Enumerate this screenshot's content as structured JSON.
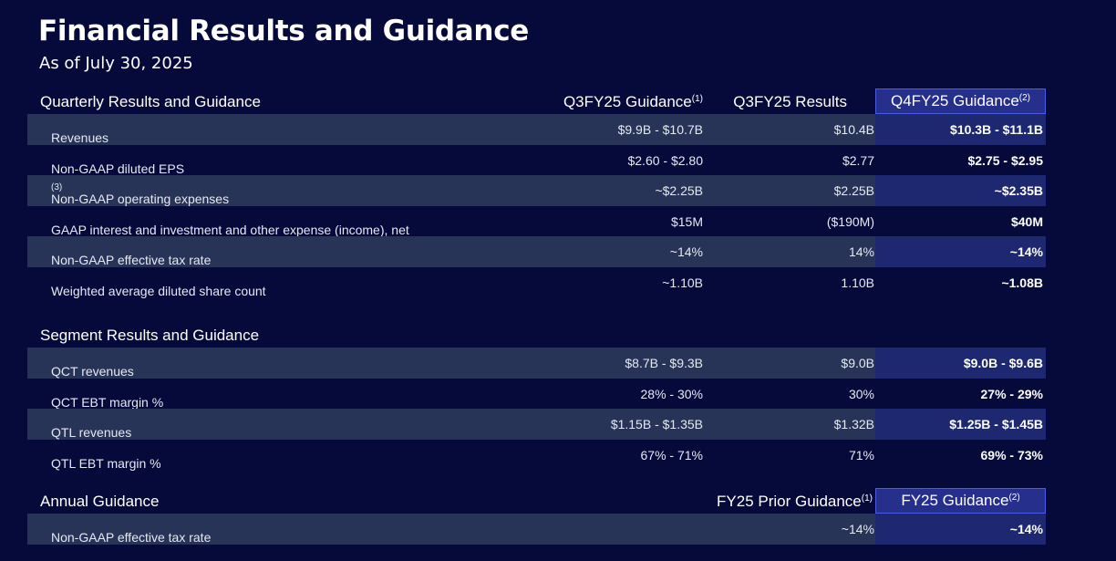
{
  "title": "Financial Results and Guidance",
  "subtitle": "As of July 30, 2025",
  "quarterly": {
    "title": "Quarterly Results and Guidance",
    "col1": "Q3FY25 Guidance",
    "col1_note": "(1)",
    "col2": "Q3FY25 Results",
    "col3": "Q4FY25 Guidance",
    "col3_note": "(2)",
    "rows": [
      {
        "label": "Revenues",
        "note": "",
        "v1": "$9.9B - $10.7B",
        "v2": "$10.4B",
        "v3": "$10.3B - $11.1B"
      },
      {
        "label": "Non-GAAP diluted EPS",
        "note": "",
        "v1": "$2.60 - $2.80",
        "v2": "$2.77",
        "v3": "$2.75 - $2.95"
      },
      {
        "label": "Non-GAAP operating expenses",
        "note": "(3)",
        "v1": "~$2.25B",
        "v2": "$2.25B",
        "v3": "~$2.35B"
      },
      {
        "label": "GAAP interest and investment and other expense (income), net",
        "note": "",
        "v1": "$15M",
        "v2": "($190M)",
        "v3": "$40M"
      },
      {
        "label": "Non-GAAP effective tax rate",
        "note": "",
        "v1": "~14%",
        "v2": "14%",
        "v3": "~14%"
      },
      {
        "label": "Weighted average diluted share count",
        "note": "",
        "v1": "~1.10B",
        "v2": "1.10B",
        "v3": "~1.08B"
      }
    ]
  },
  "segment": {
    "title": "Segment Results and Guidance",
    "rows": [
      {
        "label": "QCT revenues",
        "note": "",
        "v1": "$8.7B - $9.3B",
        "v2": "$9.0B",
        "v3": "$9.0B - $9.6B"
      },
      {
        "label": "QCT EBT margin %",
        "note": "",
        "v1": "28% - 30%",
        "v2": "30%",
        "v3": "27% - 29%"
      },
      {
        "label": "QTL revenues",
        "note": "",
        "v1": "$1.15B - $1.35B",
        "v2": "$1.32B",
        "v3": "$1.25B - $1.45B"
      },
      {
        "label": "QTL EBT margin %",
        "note": "",
        "v1": "67% - 71%",
        "v2": "71%",
        "v3": "69% - 73%"
      }
    ]
  },
  "annual": {
    "title": "Annual Guidance",
    "col2": "FY25 Prior Guidance",
    "col2_note": "(1)",
    "col3": "FY25 Guidance",
    "col3_note": "(2)",
    "rows": [
      {
        "label": "Non-GAAP effective tax rate",
        "note": "",
        "v1": "",
        "v2": "~14%",
        "v3": "~14%"
      }
    ]
  }
}
